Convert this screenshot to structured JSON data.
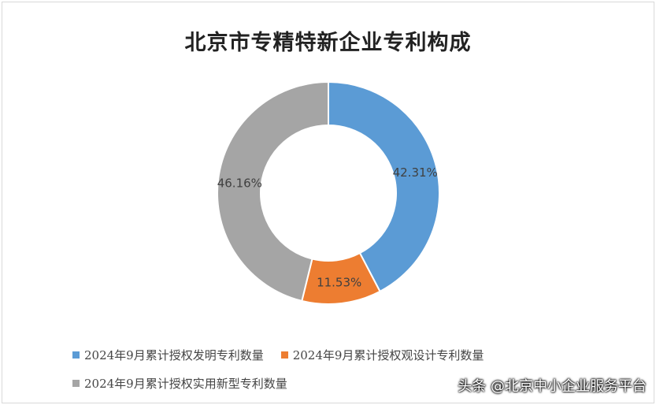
{
  "chart_data": {
    "type": "pie",
    "subtype": "donut",
    "title": "北京市专精特新企业专利构成",
    "series": [
      {
        "name": "2024年9月累计授权发明专利数量",
        "value": 42.31,
        "label": "42.31%",
        "color": "#5b9bd5"
      },
      {
        "name": "2024年9月累计授权观设计专利数量",
        "value": 11.53,
        "label": "11.53%",
        "color": "#ed7d31"
      },
      {
        "name": "2024年9月累计授权实用新型专利数量",
        "value": 46.16,
        "label": "46.16%",
        "color": "#a5a5a5"
      }
    ],
    "legend_position": "bottom"
  },
  "watermark": "头条 @北京中小企业服务平台"
}
